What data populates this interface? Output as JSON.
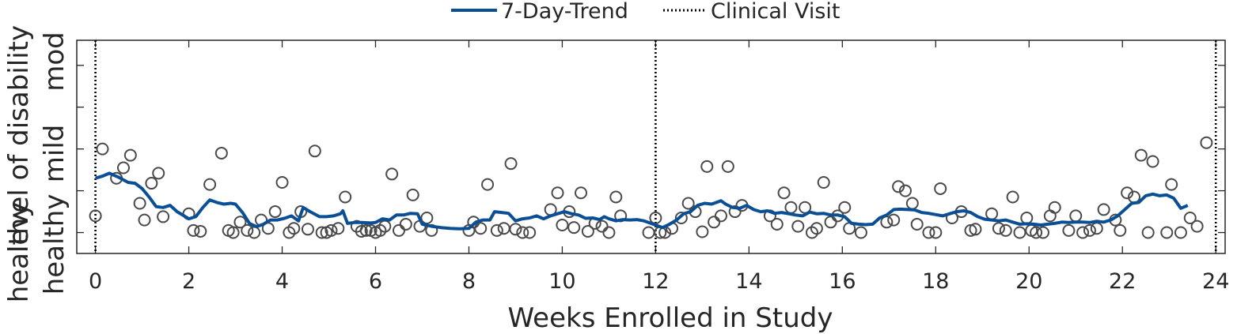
{
  "chart_data": {
    "type": "scatter",
    "xlabel": "Weeks Enrolled in Study",
    "ylabel_parts": [
      "healthy",
      "mild",
      "mod"
    ],
    "ylabel_middle": "level of disability",
    "xlim": [
      -0.4,
      24.2
    ],
    "ylim": [
      -0.5,
      4.6
    ],
    "x_ticks": [
      0,
      2,
      4,
      6,
      8,
      10,
      12,
      14,
      16,
      18,
      20,
      22,
      24
    ],
    "y_ticks": [
      0,
      1,
      2,
      3,
      4
    ],
    "legend": {
      "placement": "top-center",
      "entries": [
        {
          "label": "7-Day-Trend",
          "style": "solid",
          "color": "#0a4f96"
        },
        {
          "label": "Clinical Visit",
          "style": "dotted",
          "color": "#000000"
        }
      ]
    },
    "clinical_visits": [
      0,
      12,
      24
    ],
    "marker_color": "#4a4a4a",
    "trend_color": "#0a4f96",
    "series": [
      {
        "name": "7-Day-Trend",
        "kind": "line",
        "points": [
          [
            0,
            1.3
          ],
          [
            0.15,
            1.35
          ],
          [
            0.3,
            1.42
          ],
          [
            0.5,
            1.32
          ],
          [
            0.7,
            1.2
          ],
          [
            0.85,
            1.18
          ],
          [
            1.0,
            1.05
          ],
          [
            1.15,
            0.85
          ],
          [
            1.3,
            0.62
          ],
          [
            1.45,
            0.6
          ],
          [
            1.6,
            0.65
          ],
          [
            1.75,
            0.5
          ],
          [
            1.9,
            0.4
          ],
          [
            2.0,
            0.33
          ],
          [
            2.15,
            0.38
          ],
          [
            2.3,
            0.6
          ],
          [
            2.45,
            0.78
          ],
          [
            2.6,
            0.72
          ],
          [
            2.75,
            0.68
          ],
          [
            2.9,
            0.7
          ],
          [
            3.0,
            0.68
          ],
          [
            3.15,
            0.48
          ],
          [
            3.3,
            0.22
          ],
          [
            3.45,
            0.14
          ],
          [
            3.6,
            0.2
          ],
          [
            3.75,
            0.3
          ],
          [
            3.9,
            0.3
          ],
          [
            4.05,
            0.34
          ],
          [
            4.2,
            0.4
          ],
          [
            4.35,
            0.28
          ],
          [
            4.45,
            0.6
          ],
          [
            4.6,
            0.5
          ],
          [
            4.8,
            0.38
          ],
          [
            4.95,
            0.38
          ],
          [
            5.1,
            0.4
          ],
          [
            5.25,
            0.45
          ],
          [
            5.3,
            0.52
          ],
          [
            5.4,
            0.22
          ],
          [
            5.55,
            0.24
          ],
          [
            5.7,
            0.24
          ],
          [
            5.9,
            0.23
          ],
          [
            6.0,
            0.24
          ],
          [
            6.15,
            0.33
          ],
          [
            6.3,
            0.3
          ],
          [
            6.45,
            0.42
          ],
          [
            6.6,
            0.42
          ],
          [
            6.75,
            0.46
          ],
          [
            6.9,
            0.45
          ],
          [
            7.0,
            0.2
          ],
          [
            7.2,
            0.15
          ],
          [
            7.4,
            0.12
          ],
          [
            7.6,
            0.1
          ],
          [
            7.8,
            0.09
          ],
          [
            8.0,
            0.1
          ],
          [
            8.15,
            0.25
          ],
          [
            8.3,
            0.3
          ],
          [
            8.45,
            0.3
          ],
          [
            8.55,
            0.5
          ],
          [
            8.7,
            0.48
          ],
          [
            8.85,
            0.46
          ],
          [
            9.0,
            0.28
          ],
          [
            9.15,
            0.33
          ],
          [
            9.3,
            0.35
          ],
          [
            9.45,
            0.4
          ],
          [
            9.6,
            0.33
          ],
          [
            9.75,
            0.4
          ],
          [
            9.9,
            0.45
          ],
          [
            10.05,
            0.5
          ],
          [
            10.2,
            0.45
          ],
          [
            10.35,
            0.42
          ],
          [
            10.5,
            0.34
          ],
          [
            10.65,
            0.35
          ],
          [
            10.8,
            0.31
          ],
          [
            10.9,
            0.38
          ],
          [
            11.0,
            0.33
          ],
          [
            11.15,
            0.28
          ],
          [
            11.3,
            0.31
          ],
          [
            11.45,
            0.3
          ],
          [
            11.6,
            0.31
          ],
          [
            11.75,
            0.28
          ],
          [
            11.9,
            0.22
          ],
          [
            12.0,
            0.18
          ],
          [
            12.15,
            0.12
          ],
          [
            12.3,
            0.2
          ],
          [
            12.45,
            0.3
          ],
          [
            12.6,
            0.45
          ],
          [
            12.75,
            0.5
          ],
          [
            12.9,
            0.65
          ],
          [
            13.05,
            0.7
          ],
          [
            13.2,
            0.68
          ],
          [
            13.4,
            0.76
          ],
          [
            13.5,
            0.68
          ],
          [
            13.65,
            0.6
          ],
          [
            13.8,
            0.58
          ],
          [
            13.95,
            0.65
          ],
          [
            14.1,
            0.55
          ],
          [
            14.25,
            0.5
          ],
          [
            14.4,
            0.52
          ],
          [
            14.55,
            0.46
          ],
          [
            14.7,
            0.48
          ],
          [
            14.85,
            0.45
          ],
          [
            15.0,
            0.42
          ],
          [
            15.15,
            0.4
          ],
          [
            15.3,
            0.49
          ],
          [
            15.45,
            0.45
          ],
          [
            15.6,
            0.46
          ],
          [
            15.75,
            0.42
          ],
          [
            15.9,
            0.42
          ],
          [
            16.05,
            0.38
          ],
          [
            16.2,
            0.22
          ],
          [
            16.35,
            0.2
          ],
          [
            16.5,
            0.19
          ],
          [
            16.65,
            0.2
          ],
          [
            16.8,
            0.35
          ],
          [
            16.95,
            0.42
          ],
          [
            17.1,
            0.55
          ],
          [
            17.25,
            0.56
          ],
          [
            17.4,
            0.55
          ],
          [
            17.55,
            0.54
          ],
          [
            17.7,
            0.48
          ],
          [
            17.85,
            0.46
          ],
          [
            18.0,
            0.43
          ],
          [
            18.15,
            0.4
          ],
          [
            18.3,
            0.45
          ],
          [
            18.45,
            0.5
          ],
          [
            18.6,
            0.52
          ],
          [
            18.75,
            0.48
          ],
          [
            18.9,
            0.38
          ],
          [
            19.05,
            0.32
          ],
          [
            19.2,
            0.3
          ],
          [
            19.35,
            0.28
          ],
          [
            19.5,
            0.3
          ],
          [
            19.65,
            0.25
          ],
          [
            19.8,
            0.2
          ],
          [
            19.95,
            0.21
          ],
          [
            20.1,
            0.2
          ],
          [
            20.25,
            0.18
          ],
          [
            20.4,
            0.2
          ],
          [
            20.55,
            0.22
          ],
          [
            20.7,
            0.25
          ],
          [
            20.85,
            0.24
          ],
          [
            21.0,
            0.25
          ],
          [
            21.15,
            0.25
          ],
          [
            21.3,
            0.24
          ],
          [
            21.45,
            0.27
          ],
          [
            21.6,
            0.25
          ],
          [
            21.75,
            0.3
          ],
          [
            21.9,
            0.4
          ],
          [
            22.05,
            0.55
          ],
          [
            22.2,
            0.7
          ],
          [
            22.35,
            0.72
          ],
          [
            22.5,
            0.88
          ],
          [
            22.65,
            0.92
          ],
          [
            22.8,
            0.88
          ],
          [
            22.95,
            0.9
          ],
          [
            23.1,
            0.82
          ],
          [
            23.25,
            0.58
          ],
          [
            23.4,
            0.65
          ]
        ]
      },
      {
        "name": "",
        "kind": "scatter",
        "points": [
          [
            0,
            0.4
          ],
          [
            0.15,
            2.0
          ],
          [
            0.45,
            1.3
          ],
          [
            0.6,
            1.55
          ],
          [
            0.75,
            1.85
          ],
          [
            0.95,
            0.7
          ],
          [
            1.05,
            0.3
          ],
          [
            1.2,
            1.18
          ],
          [
            1.35,
            1.42
          ],
          [
            1.45,
            0.38
          ],
          [
            2.0,
            0.45
          ],
          [
            2.1,
            0.05
          ],
          [
            2.25,
            0.03
          ],
          [
            2.45,
            1.15
          ],
          [
            2.7,
            1.9
          ],
          [
            2.85,
            0.05
          ],
          [
            2.95,
            0.0
          ],
          [
            3.1,
            0.25
          ],
          [
            3.25,
            0.05
          ],
          [
            3.4,
            0.0
          ],
          [
            3.55,
            0.3
          ],
          [
            3.7,
            0.1
          ],
          [
            3.85,
            0.5
          ],
          [
            4.0,
            1.2
          ],
          [
            4.15,
            0.0
          ],
          [
            4.25,
            0.1
          ],
          [
            4.4,
            0.5
          ],
          [
            4.55,
            0.08
          ],
          [
            4.7,
            1.95
          ],
          [
            4.85,
            0.0
          ],
          [
            4.95,
            0.0
          ],
          [
            5.05,
            0.05
          ],
          [
            5.2,
            0.1
          ],
          [
            5.35,
            0.85
          ],
          [
            5.6,
            0.15
          ],
          [
            5.7,
            0.03
          ],
          [
            5.8,
            0.05
          ],
          [
            5.9,
            0.05
          ],
          [
            6.0,
            0.0
          ],
          [
            6.1,
            0.05
          ],
          [
            6.2,
            0.15
          ],
          [
            6.35,
            1.4
          ],
          [
            6.5,
            0.05
          ],
          [
            6.65,
            0.2
          ],
          [
            6.8,
            0.9
          ],
          [
            6.95,
            0.15
          ],
          [
            7.1,
            0.35
          ],
          [
            7.2,
            0.05
          ],
          [
            8.0,
            0.05
          ],
          [
            8.1,
            0.25
          ],
          [
            8.25,
            0.1
          ],
          [
            8.4,
            1.15
          ],
          [
            8.6,
            0.05
          ],
          [
            8.75,
            0.1
          ],
          [
            8.9,
            1.65
          ],
          [
            9.0,
            0.08
          ],
          [
            9.15,
            0.0
          ],
          [
            9.3,
            0.0
          ],
          [
            9.75,
            0.55
          ],
          [
            9.9,
            0.95
          ],
          [
            10.0,
            0.18
          ],
          [
            10.15,
            0.5
          ],
          [
            10.25,
            0.12
          ],
          [
            10.4,
            0.95
          ],
          [
            10.55,
            0.03
          ],
          [
            10.7,
            0.22
          ],
          [
            10.85,
            0.15
          ],
          [
            11.0,
            0.0
          ],
          [
            11.15,
            0.85
          ],
          [
            11.25,
            0.4
          ],
          [
            11.85,
            0.0
          ],
          [
            12.0,
            0.35
          ],
          [
            12.1,
            0.0
          ],
          [
            12.2,
            0.0
          ],
          [
            12.35,
            0.1
          ],
          [
            12.55,
            0.35
          ],
          [
            12.7,
            0.7
          ],
          [
            12.85,
            0.5
          ],
          [
            13.0,
            0.02
          ],
          [
            13.1,
            1.58
          ],
          [
            13.25,
            0.25
          ],
          [
            13.4,
            0.4
          ],
          [
            13.55,
            1.58
          ],
          [
            13.7,
            0.5
          ],
          [
            13.85,
            0.65
          ],
          [
            14.45,
            0.4
          ],
          [
            14.6,
            0.2
          ],
          [
            14.75,
            0.95
          ],
          [
            14.9,
            0.6
          ],
          [
            15.05,
            0.15
          ],
          [
            15.2,
            0.6
          ],
          [
            15.35,
            0.0
          ],
          [
            15.45,
            0.1
          ],
          [
            15.6,
            1.2
          ],
          [
            15.75,
            0.25
          ],
          [
            15.9,
            0.4
          ],
          [
            16.05,
            0.6
          ],
          [
            16.15,
            0.1
          ],
          [
            16.4,
            0.0
          ],
          [
            16.95,
            0.25
          ],
          [
            17.1,
            0.3
          ],
          [
            17.2,
            1.1
          ],
          [
            17.35,
            1.0
          ],
          [
            17.5,
            0.7
          ],
          [
            17.6,
            0.2
          ],
          [
            17.85,
            0.0
          ],
          [
            18.0,
            0.0
          ],
          [
            18.1,
            1.05
          ],
          [
            18.35,
            0.35
          ],
          [
            18.55,
            0.5
          ],
          [
            18.75,
            0.05
          ],
          [
            18.85,
            0.08
          ],
          [
            19.2,
            0.45
          ],
          [
            19.35,
            0.1
          ],
          [
            19.5,
            0.05
          ],
          [
            19.65,
            0.85
          ],
          [
            19.8,
            0.0
          ],
          [
            19.95,
            0.35
          ],
          [
            20.05,
            0.05
          ],
          [
            20.15,
            0.0
          ],
          [
            20.3,
            0.0
          ],
          [
            20.45,
            0.4
          ],
          [
            20.55,
            0.6
          ],
          [
            20.85,
            0.05
          ],
          [
            21.0,
            0.4
          ],
          [
            21.15,
            0.0
          ],
          [
            21.3,
            0.05
          ],
          [
            21.45,
            0.1
          ],
          [
            21.6,
            0.55
          ],
          [
            21.85,
            0.3
          ],
          [
            21.95,
            0.05
          ],
          [
            22.1,
            0.95
          ],
          [
            22.25,
            0.85
          ],
          [
            22.4,
            1.85
          ],
          [
            22.55,
            0.0
          ],
          [
            22.65,
            1.7
          ],
          [
            22.95,
            0.0
          ],
          [
            23.05,
            1.15
          ],
          [
            23.25,
            0.0
          ],
          [
            23.45,
            0.35
          ],
          [
            23.6,
            0.15
          ],
          [
            23.8,
            2.15
          ]
        ]
      }
    ]
  }
}
